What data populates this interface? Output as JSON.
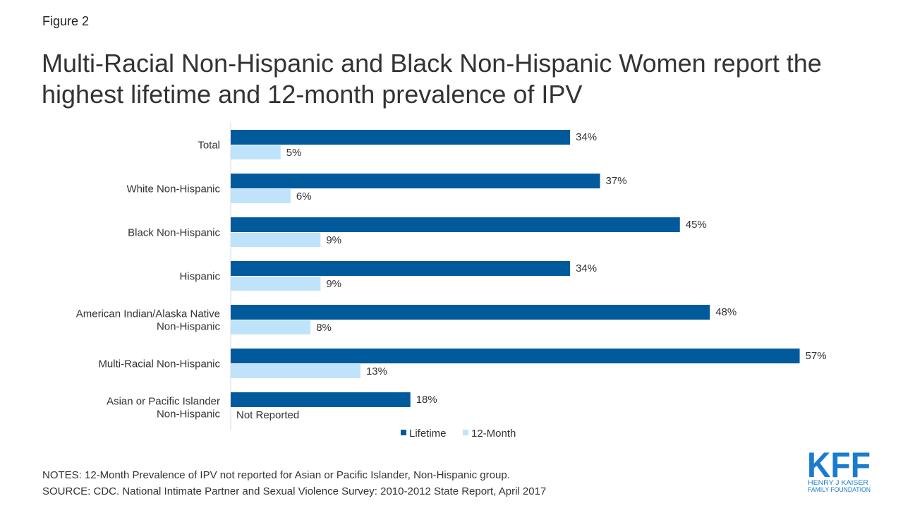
{
  "figure_label": "Figure 2",
  "title": "Multi-Racial Non-Hispanic and Black Non-Hispanic Women report the highest lifetime and 12-month prevalence of IPV",
  "notes": "NOTES: 12-Month Prevalence of IPV not reported for Asian or Pacific Islander, Non-Hispanic group.",
  "source": "SOURCE: CDC. National Intimate Partner and Sexual Violence Survey: 2010-2012 State Report, April 2017",
  "logo": {
    "text": "KFF",
    "line1": "HENRY J KAISER",
    "line2": "FAMILY FOUNDATION",
    "color": "#1a7ccc"
  },
  "chart_data": {
    "type": "bar",
    "orientation": "horizontal",
    "title": "",
    "categories": [
      [
        "Total"
      ],
      [
        "White Non-Hispanic"
      ],
      [
        "Black Non-Hispanic"
      ],
      [
        "Hispanic"
      ],
      [
        "American Indian/Alaska Native",
        "Non-Hispanic"
      ],
      [
        "Multi-Racial Non-Hispanic"
      ],
      [
        "Asian or Pacific Islander",
        "Non-Hispanic"
      ]
    ],
    "series": [
      {
        "name": "Lifetime",
        "color": "#005a9b",
        "values": [
          34,
          37,
          45,
          34,
          48,
          57,
          18
        ]
      },
      {
        "name": "12-Month",
        "color": "#bfe3fb",
        "values": [
          5,
          6,
          9,
          9,
          8,
          13,
          null
        ]
      }
    ],
    "missing_label": "Not Reported",
    "value_suffix": "%",
    "xlim": [
      0,
      65
    ],
    "grid": false,
    "legend": "bottom"
  }
}
